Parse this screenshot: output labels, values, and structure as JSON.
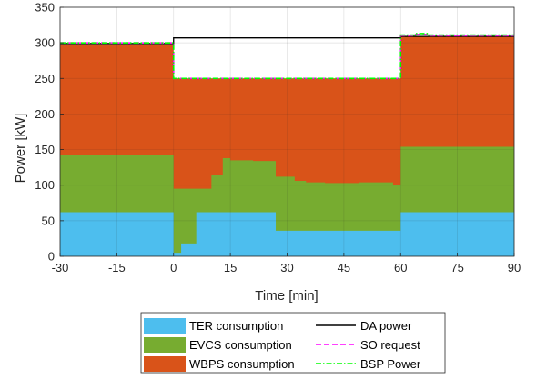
{
  "chart_data": {
    "type": "area",
    "title": "",
    "xlabel": "Time [min]",
    "ylabel": "Power [kW]",
    "xlim": [
      -30,
      90
    ],
    "ylim": [
      0,
      350
    ],
    "xticks": [
      -30,
      -15,
      0,
      15,
      30,
      45,
      60,
      75,
      90
    ],
    "yticks": [
      0,
      50,
      100,
      150,
      200,
      250,
      300,
      350
    ],
    "grid": true,
    "legend_position": "below",
    "stacking": "stacked step areas; lines overlaid",
    "areas": [
      {
        "name": "TER consumption",
        "color": "#4DBEEE",
        "steps": [
          [
            -30,
            62
          ],
          [
            0,
            5
          ],
          [
            2,
            18
          ],
          [
            6,
            62
          ],
          [
            27,
            36
          ],
          [
            60,
            62
          ],
          [
            90,
            62
          ]
        ]
      },
      {
        "name": "EVCS consumption",
        "color": "#77AC30",
        "steps": [
          [
            -30,
            143
          ],
          [
            0,
            95
          ],
          [
            6,
            95
          ],
          [
            10,
            115
          ],
          [
            13,
            138
          ],
          [
            15,
            135
          ],
          [
            21,
            134
          ],
          [
            27,
            112
          ],
          [
            32,
            106
          ],
          [
            35,
            104
          ],
          [
            40,
            103
          ],
          [
            49,
            104
          ],
          [
            58,
            100
          ],
          [
            60,
            154
          ],
          [
            90,
            154
          ]
        ]
      },
      {
        "name": "WBPS consumption",
        "color": "#D95319",
        "steps": [
          [
            -30,
            298
          ],
          [
            0,
            250
          ],
          [
            60,
            309
          ],
          [
            90,
            309
          ]
        ]
      }
    ],
    "lines": [
      {
        "name": "DA power",
        "color": "#000000",
        "dash": "solid",
        "steps": [
          [
            -30,
            299
          ],
          [
            0,
            307
          ],
          [
            60,
            309
          ],
          [
            90,
            309
          ]
        ]
      },
      {
        "name": "SO request",
        "color": "#FF00FF",
        "dash": "dashed",
        "steps": [
          [
            -30,
            300
          ],
          [
            0,
            250
          ],
          [
            60,
            310
          ],
          [
            64,
            312
          ],
          [
            67,
            310
          ],
          [
            90,
            310
          ]
        ]
      },
      {
        "name": "BSP Power",
        "color": "#00FF00",
        "dash": "dashdot",
        "steps": [
          [
            -30,
            300
          ],
          [
            0,
            250
          ],
          [
            60,
            311
          ],
          [
            64,
            313
          ],
          [
            67,
            311
          ],
          [
            90,
            311
          ]
        ]
      }
    ]
  }
}
